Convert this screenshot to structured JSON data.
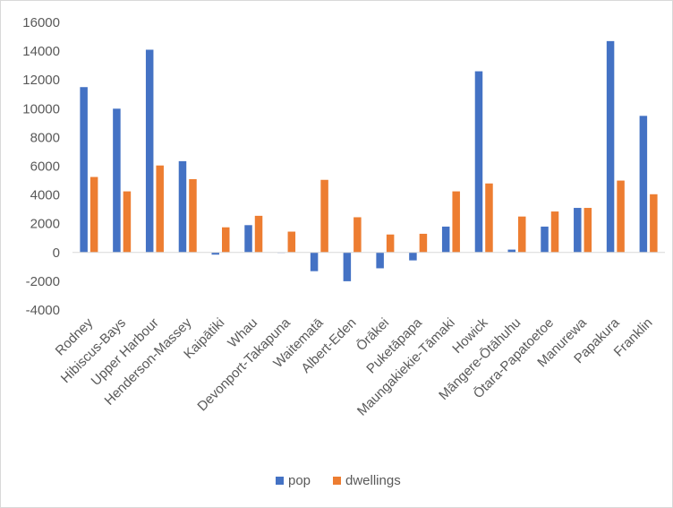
{
  "chart_data": {
    "type": "bar",
    "title": "",
    "xlabel": "",
    "ylabel": "",
    "ylim": [
      -4000,
      16000
    ],
    "ytick_step": 2000,
    "grid": false,
    "legend_position": "bottom",
    "categories": [
      "Rodney",
      "Hibiscus-Bays",
      "Upper Harbour",
      "Henderson-Massey",
      "Kaipātiki",
      "Whau",
      "Devonport-Takapuna",
      "Waitematā",
      "Albert-Eden",
      "Ōrākei",
      "Puketāpapa",
      "Maungakiekie-Tāmaki",
      "Howick",
      "Māngere-Ōtāhuhu",
      "Ōtara-Papatoetoe",
      "Manurewa",
      "Papakura",
      "Franklin"
    ],
    "series": [
      {
        "name": "pop",
        "color": "#4472c4",
        "values": [
          11500,
          10000,
          14100,
          6350,
          -150,
          1900,
          0,
          -1300,
          -2000,
          -1100,
          -550,
          1800,
          12600,
          200,
          1800,
          3100,
          14700,
          9500
        ]
      },
      {
        "name": "dwellings",
        "color": "#ed7d31",
        "values": [
          5250,
          4250,
          6050,
          5100,
          1750,
          2550,
          1450,
          5050,
          2450,
          1250,
          1300,
          4250,
          4800,
          2500,
          2850,
          3100,
          5000,
          4050
        ]
      }
    ]
  }
}
